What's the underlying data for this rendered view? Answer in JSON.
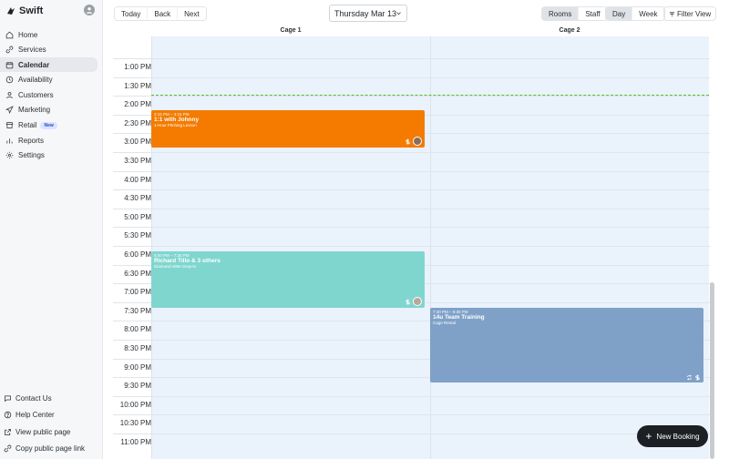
{
  "app": {
    "name": "Swift"
  },
  "sidebar": {
    "items": [
      {
        "label": "Home",
        "icon": "home-icon"
      },
      {
        "label": "Services",
        "icon": "link-icon"
      },
      {
        "label": "Calendar",
        "icon": "calendar-icon",
        "active": true
      },
      {
        "label": "Availability",
        "icon": "clock-icon"
      },
      {
        "label": "Customers",
        "icon": "person-icon"
      },
      {
        "label": "Marketing",
        "icon": "send-icon"
      },
      {
        "label": "Retail",
        "icon": "storefront-icon",
        "badge": "New"
      },
      {
        "label": "Reports",
        "icon": "bar-chart-icon"
      },
      {
        "label": "Settings",
        "icon": "gear-icon"
      }
    ],
    "footer": [
      {
        "label": "Contact Us",
        "icon": "chat-icon"
      },
      {
        "label": "Help Center",
        "icon": "help-icon"
      },
      {
        "label": "View public page",
        "icon": "external-link-icon"
      },
      {
        "label": "Copy public page link",
        "icon": "link-icon"
      }
    ]
  },
  "toolbar": {
    "today": "Today",
    "back": "Back",
    "next": "Next",
    "date": "Thursday Mar 13",
    "rooms": "Rooms",
    "staff": "Staff",
    "day": "Day",
    "week": "Week",
    "filter": "Filter View"
  },
  "calendar": {
    "columns": [
      "Cage 1",
      "Cage 2"
    ],
    "times": [
      "1:00 PM",
      "1:30 PM",
      "2:00 PM",
      "2:30 PM",
      "3:00 PM",
      "3:30 PM",
      "4:00 PM",
      "4:30 PM",
      "5:00 PM",
      "5:30 PM",
      "6:00 PM",
      "6:30 PM",
      "7:00 PM",
      "7:30 PM",
      "8:00 PM",
      "8:30 PM",
      "9:00 PM",
      "9:30 PM",
      "10:00 PM",
      "10:30 PM",
      "11:00 PM"
    ],
    "events": [
      {
        "time": "2:15 PM – 3:15 PM",
        "title": "1:1 with Johnny",
        "subtitle": "1-Hour Pitching Lesson",
        "color": "#f47b00"
      },
      {
        "time": "6:00 PM – 7:30 PM",
        "title": "Richard Tillo & 3 others",
        "subtitle": "Diamond Hitter Drop-in",
        "color": "#7fd6cf"
      },
      {
        "time": "7:30 PM – 9:30 PM",
        "title": "14u Team Training",
        "subtitle": "Cage Rental",
        "color": "#7fa1c8"
      }
    ]
  },
  "new_booking": "New Booking"
}
